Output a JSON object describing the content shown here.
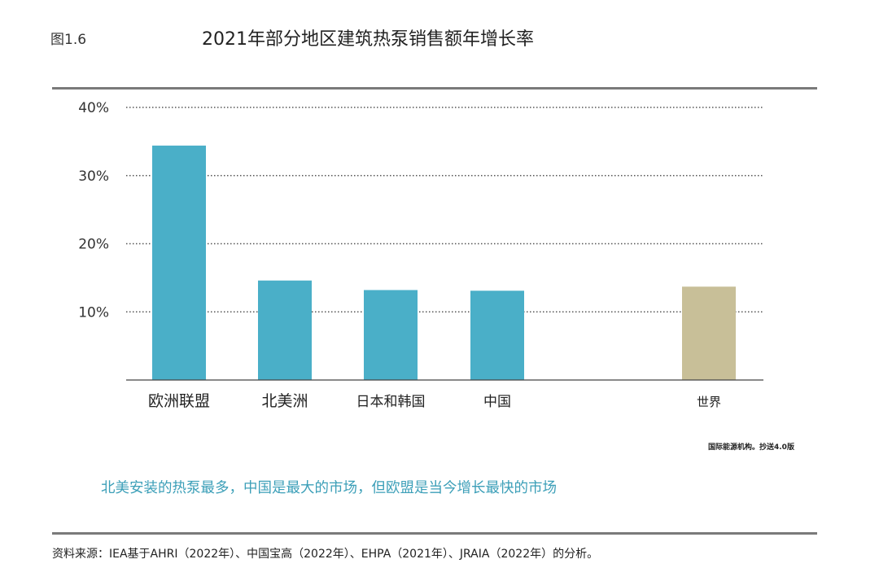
{
  "figure_label": "图1.6",
  "title": "2021年部分地区建筑热泵销售额年增长率",
  "credit": "国际能源机构。抄送4.0版",
  "caption": "北美安装的热泵最多，中国是最大的市场，但欧盟是当今增长最快的市场",
  "source": "资料来源：IEA基于AHRI（2022年）、中国宝高（2022年）、EHPA（2021年）、JRAIA（2022年）的分析。",
  "colors": {
    "region_bar": "#4aafc8",
    "world_bar": "#c8bf98",
    "caption": "#3c9fb8"
  },
  "chart_data": {
    "type": "bar",
    "title": "2021年部分地区建筑热泵销售额年增长率",
    "categories": [
      "欧洲联盟",
      "北美洲",
      "日本和韩国",
      "中国",
      "世界"
    ],
    "values": [
      0.344,
      0.146,
      0.132,
      0.131,
      0.137
    ],
    "bar_colors": [
      "#4aafc8",
      "#4aafc8",
      "#4aafc8",
      "#4aafc8",
      "#c8bf98"
    ],
    "yticks": [
      0.1,
      0.2,
      0.3,
      0.4
    ],
    "ytick_labels": [
      "10%",
      "20%",
      "30%",
      "40%"
    ],
    "ylim": [
      0,
      0.4
    ],
    "xlabel": "",
    "ylabel": "",
    "grid": "dotted horizontal",
    "legend": "none"
  }
}
